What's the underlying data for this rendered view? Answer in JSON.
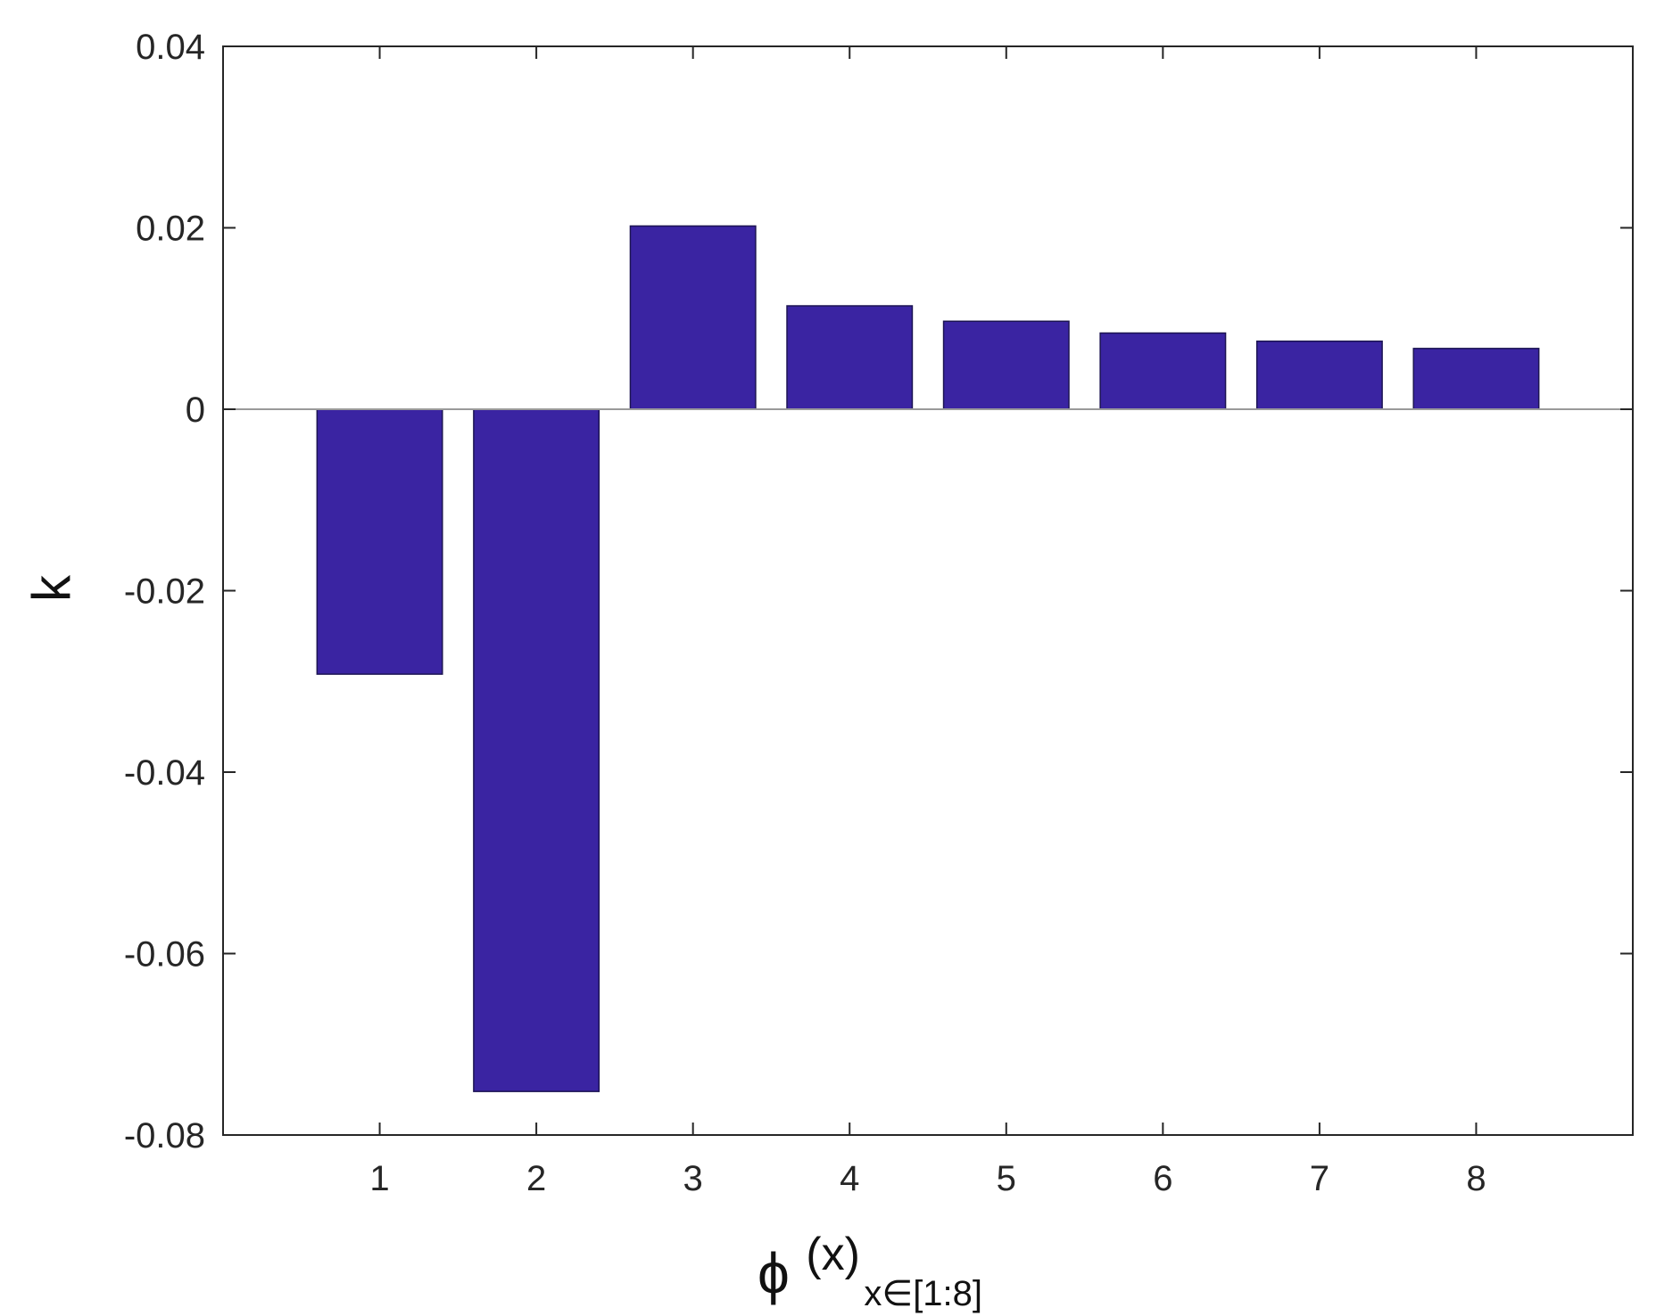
{
  "chart_data": {
    "type": "bar",
    "categories": [
      "1",
      "2",
      "3",
      "4",
      "5",
      "6",
      "7",
      "8"
    ],
    "values": [
      -0.0292,
      -0.0752,
      0.0202,
      0.0114,
      0.0097,
      0.0084,
      0.0075,
      0.0067
    ],
    "ylim": [
      -0.08,
      0.04
    ],
    "xlim": [
      0,
      9
    ],
    "yticks": [
      "-0.08",
      "-0.06",
      "-0.04",
      "-0.02",
      "0",
      "0.02",
      "0.04"
    ],
    "ylabel": "k",
    "xlabel": {
      "symbol": "ϕ",
      "arg": "(x)",
      "subscript": "x∈[1:8]"
    },
    "grid": false,
    "legend": "none",
    "colors": {
      "bar": "#3a24a2",
      "bar_edge": "#1c1452",
      "axis": "#262626",
      "zero_line": "#9a9a9a"
    }
  }
}
